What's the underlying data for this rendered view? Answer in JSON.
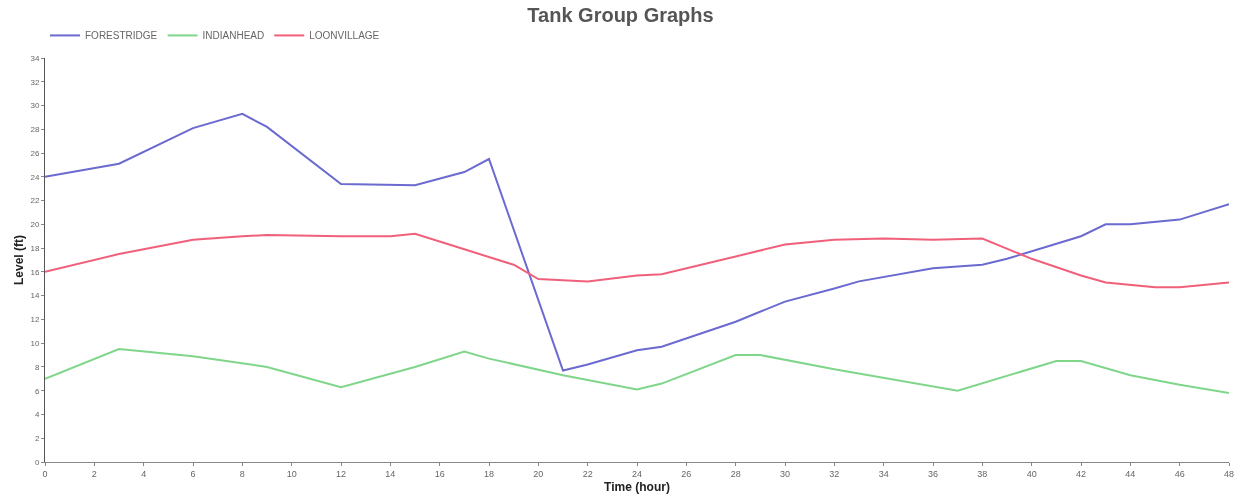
{
  "chart_data": {
    "type": "line",
    "title": "Tank Group Graphs",
    "xlabel": "Time (hour)",
    "ylabel": "Level (ft)",
    "xlim": [
      0,
      48
    ],
    "xticks": [
      0,
      2,
      4,
      6,
      8,
      10,
      12,
      14,
      16,
      18,
      20,
      22,
      24,
      26,
      28,
      30,
      32,
      34,
      36,
      38,
      40,
      42,
      44,
      46,
      48
    ],
    "ylim": [
      0,
      34
    ],
    "yticks": [
      0,
      2,
      4,
      6,
      8,
      10,
      12,
      14,
      16,
      18,
      20,
      22,
      24,
      26,
      28,
      30,
      32,
      34
    ],
    "grid": false,
    "legend": "top left",
    "marker": "none",
    "line_style": "solid",
    "series": [
      {
        "name": "FORESTRIDGE",
        "color": "#6a6ad0",
        "x": [
          0,
          3,
          6,
          8,
          9,
          12,
          15,
          17,
          18,
          21,
          22,
          24,
          25,
          28,
          30,
          32,
          33,
          36,
          38,
          39,
          42,
          43,
          44,
          46,
          48
        ],
        "values": [
          24,
          25.1,
          28.1,
          29.3,
          28.2,
          23.4,
          23.3,
          24.4,
          25.5,
          7.7,
          8.2,
          9.4,
          9.7,
          11.8,
          13.5,
          14.6,
          15.2,
          16.3,
          16.6,
          17.1,
          19,
          20,
          20,
          20.4,
          21.7
        ]
      },
      {
        "name": "INDIANHEAD",
        "color": "#7fd68a",
        "x": [
          0,
          3,
          6,
          9,
          12,
          15,
          17,
          18,
          21,
          24,
          25,
          28,
          29,
          32,
          37,
          41,
          42,
          44,
          46,
          48
        ],
        "values": [
          7,
          9.5,
          8.9,
          8,
          6.3,
          8,
          9.3,
          8.7,
          7.3,
          6.1,
          6.6,
          9,
          9,
          7.8,
          6,
          8.5,
          8.5,
          7.3,
          6.5,
          5.8
        ]
      },
      {
        "name": "LOONVILLAGE",
        "color": "#f0607a",
        "x": [
          0,
          3,
          6,
          8,
          9,
          12,
          14,
          15,
          17,
          19,
          20,
          22,
          24,
          25,
          28,
          30,
          32,
          34,
          36,
          38,
          40,
          42,
          43,
          45,
          46,
          48
        ],
        "values": [
          16,
          17.5,
          18.7,
          19,
          19.1,
          19,
          19,
          19.2,
          17.9,
          16.6,
          15.4,
          15.2,
          15.7,
          15.8,
          17.3,
          18.3,
          18.7,
          18.8,
          18.7,
          18.8,
          17.1,
          15.7,
          15.1,
          14.7,
          14.7,
          15.1
        ]
      }
    ]
  }
}
